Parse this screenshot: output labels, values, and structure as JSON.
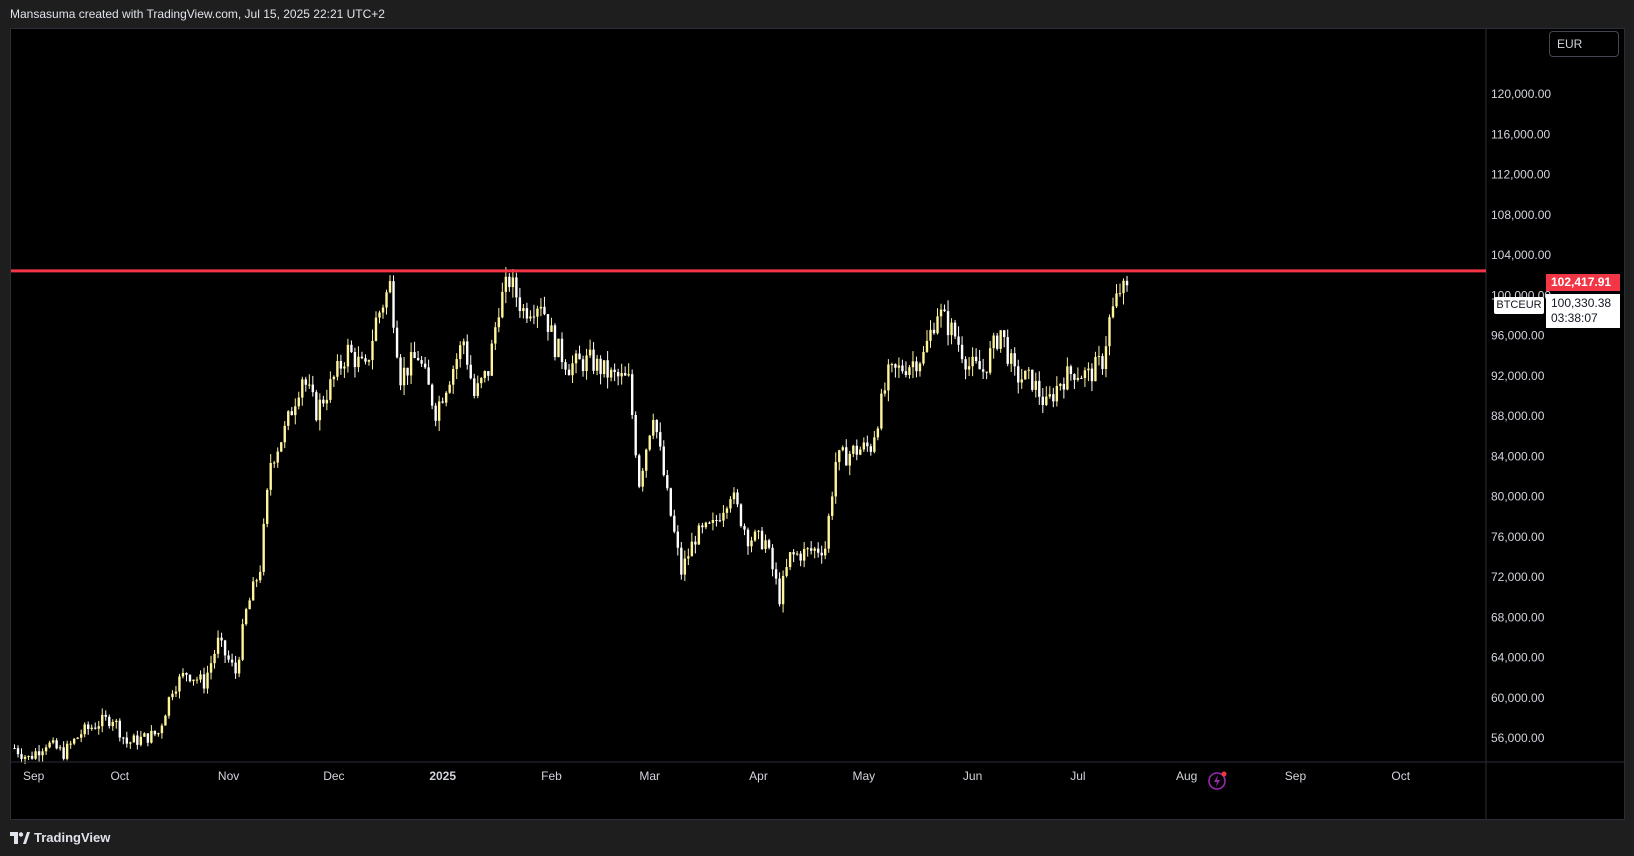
{
  "header": {
    "caption": "Mansasuma created with TradingView.com, Jul 15, 2025 22:21 UTC+2"
  },
  "toolbar": {
    "currency": "EUR"
  },
  "footer": {
    "brand": "TradingView"
  },
  "price_scale": {
    "level_price": "102,417.91",
    "symbol": "BTCEUR",
    "last_price": "100,330.38",
    "countdown": "03:38:07"
  },
  "chart_data": {
    "type": "candlestick",
    "title": "",
    "symbol": "BTCEUR",
    "interval": "1D",
    "currency": "EUR",
    "ylim": [
      53000,
      127000
    ],
    "y_ticks": [
      56000,
      60000,
      64000,
      68000,
      72000,
      76000,
      80000,
      84000,
      88000,
      92000,
      96000,
      100000,
      104000,
      108000,
      112000,
      116000,
      120000
    ],
    "y_tick_labels": [
      "56,000.00",
      "60,000.00",
      "64,000.00",
      "68,000.00",
      "72,000.00",
      "76,000.00",
      "80,000.00",
      "84,000.00",
      "88,000.00",
      "92,000.00",
      "96,000.00",
      "100,000.00",
      "104,000.00",
      "108,000.00",
      "112,000.00",
      "116,000.00",
      "120,000.00"
    ],
    "x_ticks": [
      {
        "date": "2024-09-01",
        "label": "Sep"
      },
      {
        "date": "2024-10-01",
        "label": "Oct"
      },
      {
        "date": "2024-11-01",
        "label": "Nov"
      },
      {
        "date": "2024-12-01",
        "label": "Dec"
      },
      {
        "date": "2025-01-01",
        "label": "2025"
      },
      {
        "date": "2025-02-01",
        "label": "Feb"
      },
      {
        "date": "2025-03-01",
        "label": "Mar"
      },
      {
        "date": "2025-04-01",
        "label": "Apr"
      },
      {
        "date": "2025-05-01",
        "label": "May"
      },
      {
        "date": "2025-06-01",
        "label": "Jun"
      },
      {
        "date": "2025-07-01",
        "label": "Jul"
      },
      {
        "date": "2025-08-01",
        "label": "Aug"
      },
      {
        "date": "2025-09-01",
        "label": "Sep"
      },
      {
        "date": "2025-10-01",
        "label": "Oct"
      }
    ],
    "horizontal_line": {
      "value": 102417.91,
      "color": "#f23645"
    },
    "last_price": 100330.38,
    "up_color": "#fff59d",
    "down_color": "#ffffff",
    "grid": false,
    "closes": [
      [
        "2024-09-01",
        55000
      ],
      [
        "2024-09-05",
        54000
      ],
      [
        "2024-09-10",
        55500
      ],
      [
        "2024-09-15",
        54500
      ],
      [
        "2024-09-20",
        56500
      ],
      [
        "2024-09-25",
        57500
      ],
      [
        "2024-09-29",
        58000
      ],
      [
        "2024-10-03",
        55500
      ],
      [
        "2024-10-08",
        56000
      ],
      [
        "2024-10-12",
        56500
      ],
      [
        "2024-10-16",
        61000
      ],
      [
        "2024-10-20",
        62500
      ],
      [
        "2024-10-25",
        61500
      ],
      [
        "2024-10-29",
        65500
      ],
      [
        "2024-11-03",
        62500
      ],
      [
        "2024-11-06",
        68500
      ],
      [
        "2024-11-10",
        73000
      ],
      [
        "2024-11-13",
        83500
      ],
      [
        "2024-11-17",
        86500
      ],
      [
        "2024-11-22",
        92000
      ],
      [
        "2024-11-26",
        88500
      ],
      [
        "2024-11-30",
        91000
      ],
      [
        "2024-12-05",
        94500
      ],
      [
        "2024-12-10",
        92500
      ],
      [
        "2024-12-13",
        97500
      ],
      [
        "2024-12-17",
        101000
      ],
      [
        "2024-12-20",
        92000
      ],
      [
        "2024-12-25",
        94000
      ],
      [
        "2024-12-30",
        88500
      ],
      [
        "2025-01-03",
        92000
      ],
      [
        "2025-01-07",
        95500
      ],
      [
        "2025-01-10",
        90000
      ],
      [
        "2025-01-14",
        92500
      ],
      [
        "2025-01-17",
        99000
      ],
      [
        "2025-01-20",
        101500
      ],
      [
        "2025-01-24",
        98500
      ],
      [
        "2025-01-29",
        99500
      ],
      [
        "2025-02-02",
        95000
      ],
      [
        "2025-02-06",
        93000
      ],
      [
        "2025-02-12",
        93500
      ],
      [
        "2025-02-18",
        92000
      ],
      [
        "2025-02-23",
        91500
      ],
      [
        "2025-02-26",
        81500
      ],
      [
        "2025-03-02",
        88500
      ],
      [
        "2025-03-06",
        80000
      ],
      [
        "2025-03-10",
        72500
      ],
      [
        "2025-03-14",
        76000
      ],
      [
        "2025-03-19",
        77000
      ],
      [
        "2025-03-24",
        80500
      ],
      [
        "2025-03-29",
        76000
      ],
      [
        "2025-04-03",
        75500
      ],
      [
        "2025-04-07",
        70000
      ],
      [
        "2025-04-10",
        74000
      ],
      [
        "2025-04-15",
        74500
      ],
      [
        "2025-04-20",
        75000
      ],
      [
        "2025-04-23",
        83500
      ],
      [
        "2025-04-28",
        84500
      ],
      [
        "2025-05-03",
        85000
      ],
      [
        "2025-05-08",
        92000
      ],
      [
        "2025-05-13",
        93000
      ],
      [
        "2025-05-18",
        94000
      ],
      [
        "2025-05-22",
        98500
      ],
      [
        "2025-05-27",
        96000
      ],
      [
        "2025-05-31",
        93000
      ],
      [
        "2025-06-04",
        92500
      ],
      [
        "2025-06-09",
        96500
      ],
      [
        "2025-06-13",
        92000
      ],
      [
        "2025-06-18",
        91500
      ],
      [
        "2025-06-22",
        89000
      ],
      [
        "2025-06-26",
        91500
      ],
      [
        "2025-06-30",
        92500
      ],
      [
        "2025-07-04",
        92000
      ],
      [
        "2025-07-08",
        93500
      ],
      [
        "2025-07-10",
        97500
      ],
      [
        "2025-07-13",
        100500
      ],
      [
        "2025-07-15",
        100330
      ]
    ]
  }
}
